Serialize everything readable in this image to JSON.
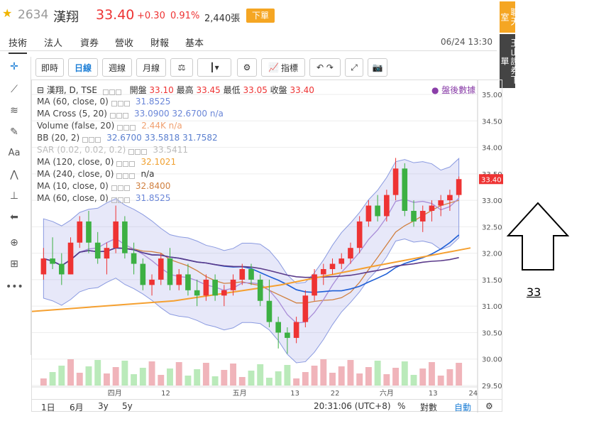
{
  "quote": {
    "code": "2634",
    "name": "漢翔",
    "price": "33.40",
    "change": "+0.30",
    "percent": "0.91%",
    "volume": "2,440張",
    "order_label": "下單"
  },
  "tabs": [
    {
      "label": "技術"
    },
    {
      "label": "法人"
    },
    {
      "label": "資券"
    },
    {
      "label": "營收"
    },
    {
      "label": "財報"
    },
    {
      "label": "基本"
    }
  ],
  "datetime": "06/24 13:30",
  "toolbar": {
    "realtime": "即時",
    "daily": "日線",
    "weekly": "週線",
    "monthly": "月線",
    "indicator": "指標"
  },
  "side": {
    "chat": "聊天室",
    "broker": "玉山證券下單"
  },
  "legend": {
    "title": "漢翔, D, TSE",
    "ohlc": {
      "open_label": "開盤",
      "open": "33.10",
      "high_label": "最高",
      "high": "33.45",
      "low_label": "最低",
      "low": "33.05",
      "close_label": "收盤",
      "close": "33.40"
    },
    "after_hours": "盤後數據",
    "lines": [
      {
        "name": "MA (60, close, 0)",
        "values": "31.8525",
        "color": "#6a86d8"
      },
      {
        "name": "MA Cross (5, 20)",
        "values": "33.0900  32.6700  n/a",
        "color": "#6a86d8"
      },
      {
        "name": "Volume (false, 20)",
        "values": "2.44K  n/a",
        "color": "#f0a070"
      },
      {
        "name": "BB (20, 2)",
        "values": "32.6700  33.5818  31.7582",
        "color": "#5a7fcf"
      },
      {
        "name": "SAR (0.02, 0.02, 0.2)",
        "values": "33.5411",
        "color": "#bbbbbb"
      },
      {
        "name": "MA (120, close, 0)",
        "values": "32.1021",
        "color": "#f0a030"
      },
      {
        "name": "MA (240, close, 0)",
        "values": "n/a",
        "color": "#333333"
      },
      {
        "name": "MA (10, close, 0)",
        "values": "32.8400",
        "color": "#d08040"
      },
      {
        "name": "MA (60, close, 0)",
        "values": "31.8525",
        "color": "#6a86d8"
      }
    ]
  },
  "chart_data": {
    "type": "candlestick",
    "y_ticks": [
      "35.00",
      "34.50",
      "34.00",
      "33.50",
      "33.00",
      "32.50",
      "32.00",
      "31.50",
      "31.00",
      "30.50",
      "30.00",
      "29.50"
    ],
    "last_price": "33.40",
    "x_ticks": [
      "四月",
      "12",
      "五月",
      "13",
      "22",
      "六月",
      "13",
      "24"
    ],
    "series": [
      {
        "name": "candles",
        "values": [
          [
            31.6,
            32.1,
            31.5,
            31.9
          ],
          [
            31.9,
            32.3,
            31.7,
            31.8
          ],
          [
            31.8,
            32.0,
            31.4,
            31.6
          ],
          [
            31.6,
            32.3,
            31.6,
            32.2
          ],
          [
            32.2,
            32.7,
            32.1,
            32.6
          ],
          [
            32.6,
            32.8,
            32.0,
            32.2
          ],
          [
            32.2,
            32.4,
            31.8,
            31.9
          ],
          [
            31.9,
            32.2,
            31.6,
            32.1
          ],
          [
            32.1,
            32.9,
            32.0,
            32.6
          ],
          [
            32.6,
            32.7,
            31.9,
            32.0
          ],
          [
            32.0,
            32.2,
            31.6,
            31.8
          ],
          [
            31.8,
            31.9,
            31.3,
            31.4
          ],
          [
            31.4,
            31.6,
            31.2,
            31.5
          ],
          [
            31.5,
            32.0,
            31.4,
            31.9
          ],
          [
            31.9,
            32.1,
            31.3,
            31.4
          ],
          [
            31.4,
            31.7,
            31.3,
            31.6
          ],
          [
            31.6,
            31.8,
            31.2,
            31.3
          ],
          [
            31.3,
            31.5,
            31.0,
            31.2
          ],
          [
            31.2,
            31.6,
            31.1,
            31.5
          ],
          [
            31.5,
            31.6,
            31.1,
            31.2
          ],
          [
            31.2,
            31.4,
            31.0,
            31.3
          ],
          [
            31.3,
            31.6,
            31.2,
            31.5
          ],
          [
            31.5,
            31.8,
            31.4,
            31.7
          ],
          [
            31.7,
            31.8,
            31.4,
            31.5
          ],
          [
            31.5,
            31.6,
            31.0,
            31.1
          ],
          [
            31.1,
            31.5,
            30.6,
            30.7
          ],
          [
            30.7,
            30.8,
            30.2,
            30.5
          ],
          [
            30.5,
            30.6,
            30.1,
            30.4
          ],
          [
            30.4,
            30.8,
            30.3,
            30.7
          ],
          [
            30.7,
            31.3,
            30.6,
            31.2
          ],
          [
            31.2,
            31.7,
            31.1,
            31.6
          ],
          [
            31.6,
            31.8,
            31.4,
            31.7
          ],
          [
            31.7,
            31.9,
            31.6,
            31.8
          ],
          [
            31.8,
            32.0,
            31.7,
            31.9
          ],
          [
            31.9,
            32.2,
            31.8,
            32.1
          ],
          [
            32.1,
            32.7,
            32.0,
            32.6
          ],
          [
            32.6,
            33.0,
            32.5,
            32.9
          ],
          [
            32.9,
            33.1,
            32.6,
            32.7
          ],
          [
            32.7,
            33.2,
            32.6,
            33.1
          ],
          [
            33.1,
            33.8,
            33.0,
            33.6
          ],
          [
            33.6,
            33.7,
            32.7,
            32.8
          ],
          [
            32.8,
            33.0,
            32.5,
            32.6
          ],
          [
            32.6,
            32.9,
            32.4,
            32.8
          ],
          [
            32.8,
            33.0,
            32.6,
            32.9
          ],
          [
            32.9,
            33.1,
            32.7,
            33.0
          ],
          [
            33.0,
            33.2,
            32.8,
            33.1
          ],
          [
            33.1,
            33.45,
            33.05,
            33.4
          ]
        ]
      }
    ]
  },
  "bottom": {
    "ranges": [
      "1日",
      "6月",
      "3y",
      "5y"
    ],
    "time": "20:31:06 (UTC+8)",
    "pct": "%",
    "log": "對數",
    "auto": "自動"
  },
  "annotation": {
    "value": "33"
  }
}
